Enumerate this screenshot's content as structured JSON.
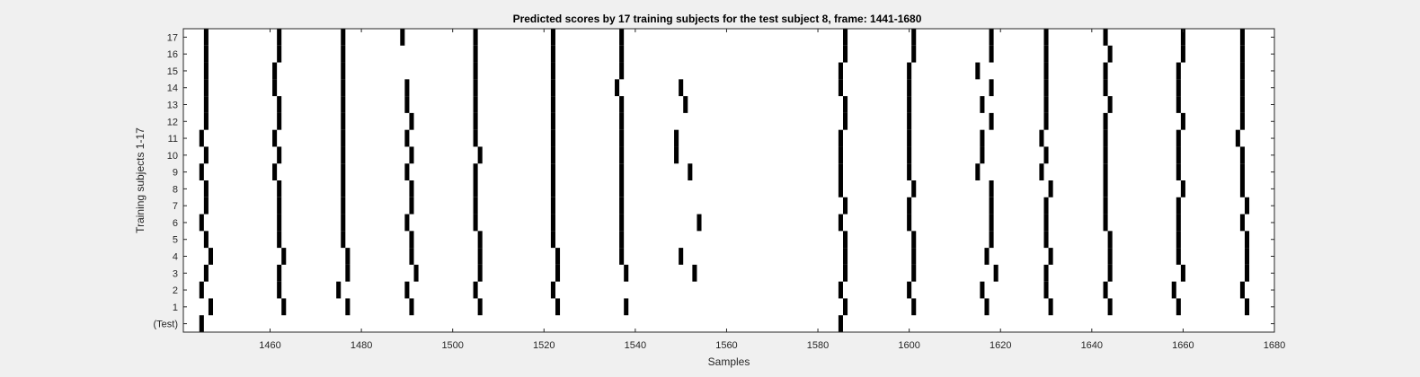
{
  "chart_data": {
    "type": "scatter",
    "title": "Predicted scores by 17 training subjects for the test subject 8, frame: 1441-1680",
    "xlabel": "Samples",
    "ylabel": "Training subjects 1-17",
    "xlim": [
      1441,
      1680
    ],
    "xticks": [
      1460,
      1480,
      1500,
      1520,
      1540,
      1560,
      1580,
      1600,
      1620,
      1640,
      1660,
      1680
    ],
    "yticks": [
      "(Test)",
      "1",
      "2",
      "3",
      "4",
      "5",
      "6",
      "7",
      "8",
      "9",
      "10",
      "11",
      "12",
      "13",
      "14",
      "15",
      "16",
      "17"
    ],
    "grid": false,
    "mark_color": "#000000",
    "series": [
      {
        "row": "(Test)",
        "x": [
          1445,
          1585
        ]
      },
      {
        "row": "1",
        "x": [
          1447,
          1463,
          1477,
          1491,
          1506,
          1523,
          1538,
          1586,
          1601,
          1617,
          1631,
          1644,
          1659,
          1674
        ]
      },
      {
        "row": "2",
        "x": [
          1445,
          1462,
          1475,
          1490,
          1505,
          1522,
          1585,
          1600,
          1616,
          1630,
          1643,
          1658,
          1673
        ]
      },
      {
        "row": "3",
        "x": [
          1446,
          1462,
          1477,
          1492,
          1506,
          1523,
          1538,
          1553,
          1586,
          1601,
          1619,
          1630,
          1644,
          1660,
          1674
        ]
      },
      {
        "row": "4",
        "x": [
          1447,
          1463,
          1477,
          1491,
          1506,
          1523,
          1537,
          1550,
          1586,
          1601,
          1617,
          1631,
          1644,
          1659,
          1674
        ]
      },
      {
        "row": "5",
        "x": [
          1446,
          1462,
          1476,
          1491,
          1506,
          1522,
          1537,
          1586,
          1601,
          1618,
          1630,
          1644,
          1659,
          1674
        ]
      },
      {
        "row": "6",
        "x": [
          1445,
          1462,
          1476,
          1490,
          1505,
          1522,
          1537,
          1554,
          1585,
          1600,
          1618,
          1630,
          1643,
          1659,
          1673
        ]
      },
      {
        "row": "7",
        "x": [
          1446,
          1462,
          1476,
          1491,
          1505,
          1522,
          1537,
          1586,
          1600,
          1618,
          1630,
          1643,
          1659,
          1674
        ]
      },
      {
        "row": "8",
        "x": [
          1446,
          1462,
          1476,
          1491,
          1505,
          1522,
          1537,
          1585,
          1601,
          1618,
          1631,
          1643,
          1660,
          1673
        ]
      },
      {
        "row": "9",
        "x": [
          1445,
          1461,
          1476,
          1490,
          1505,
          1522,
          1537,
          1552,
          1585,
          1600,
          1615,
          1629,
          1643,
          1659,
          1673
        ]
      },
      {
        "row": "10",
        "x": [
          1446,
          1462,
          1476,
          1491,
          1506,
          1522,
          1537,
          1549,
          1585,
          1600,
          1616,
          1630,
          1643,
          1659,
          1673
        ]
      },
      {
        "row": "11",
        "x": [
          1445,
          1461,
          1476,
          1490,
          1505,
          1522,
          1537,
          1549,
          1585,
          1600,
          1616,
          1629,
          1643,
          1659,
          1672
        ]
      },
      {
        "row": "12",
        "x": [
          1446,
          1462,
          1476,
          1491,
          1505,
          1522,
          1537,
          1586,
          1600,
          1618,
          1630,
          1643,
          1660,
          1673
        ]
      },
      {
        "row": "13",
        "x": [
          1446,
          1462,
          1476,
          1490,
          1505,
          1522,
          1537,
          1551,
          1586,
          1600,
          1616,
          1630,
          1644,
          1659,
          1673
        ]
      },
      {
        "row": "14",
        "x": [
          1446,
          1461,
          1476,
          1490,
          1505,
          1522,
          1536,
          1550,
          1585,
          1600,
          1618,
          1630,
          1643,
          1659,
          1673
        ]
      },
      {
        "row": "15",
        "x": [
          1446,
          1461,
          1476,
          1505,
          1522,
          1537,
          1585,
          1600,
          1615,
          1630,
          1643,
          1659,
          1673
        ]
      },
      {
        "row": "16",
        "x": [
          1446,
          1462,
          1476,
          1505,
          1522,
          1537,
          1586,
          1601,
          1618,
          1630,
          1644,
          1660,
          1673
        ]
      },
      {
        "row": "17",
        "x": [
          1446,
          1462,
          1476,
          1489,
          1505,
          1522,
          1537,
          1586,
          1601,
          1618,
          1630,
          1643,
          1660,
          1673
        ]
      }
    ]
  }
}
